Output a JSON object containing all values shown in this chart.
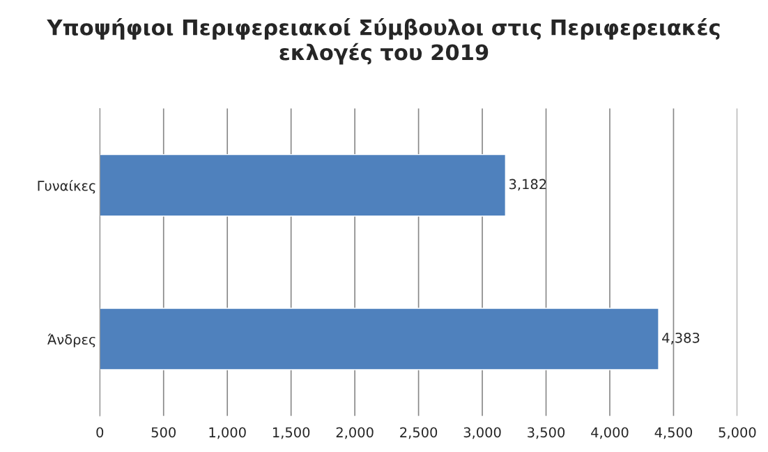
{
  "chart_data": {
    "type": "bar",
    "orientation": "horizontal",
    "title": "Υποψήφιοι Περιφερειακοί Σύμβουλοι στις Περιφερειακές εκλογές του 2019",
    "categories": [
      "Γυναίκες",
      "Άνδρες"
    ],
    "values": [
      3182,
      4383
    ],
    "value_labels": [
      "3,182",
      "4,383"
    ],
    "color": "#4f81bd",
    "xlim": [
      0,
      5000
    ],
    "xticks": [
      0,
      500,
      {
        "value": 1000,
        "label": "1,000"
      },
      {
        "value": 1500,
        "label": "1,500"
      },
      {
        "value": 2000,
        "label": "2,000"
      },
      {
        "value": 2500,
        "label": "2,500"
      },
      {
        "value": 3000,
        "label": "3,000"
      },
      {
        "value": 3500,
        "label": "3,500"
      },
      {
        "value": 4000,
        "label": "4,000"
      },
      {
        "value": 4500,
        "label": "4,500"
      },
      {
        "value": 5000,
        "label": "5,000"
      }
    ],
    "grid": "x",
    "legend": false
  }
}
